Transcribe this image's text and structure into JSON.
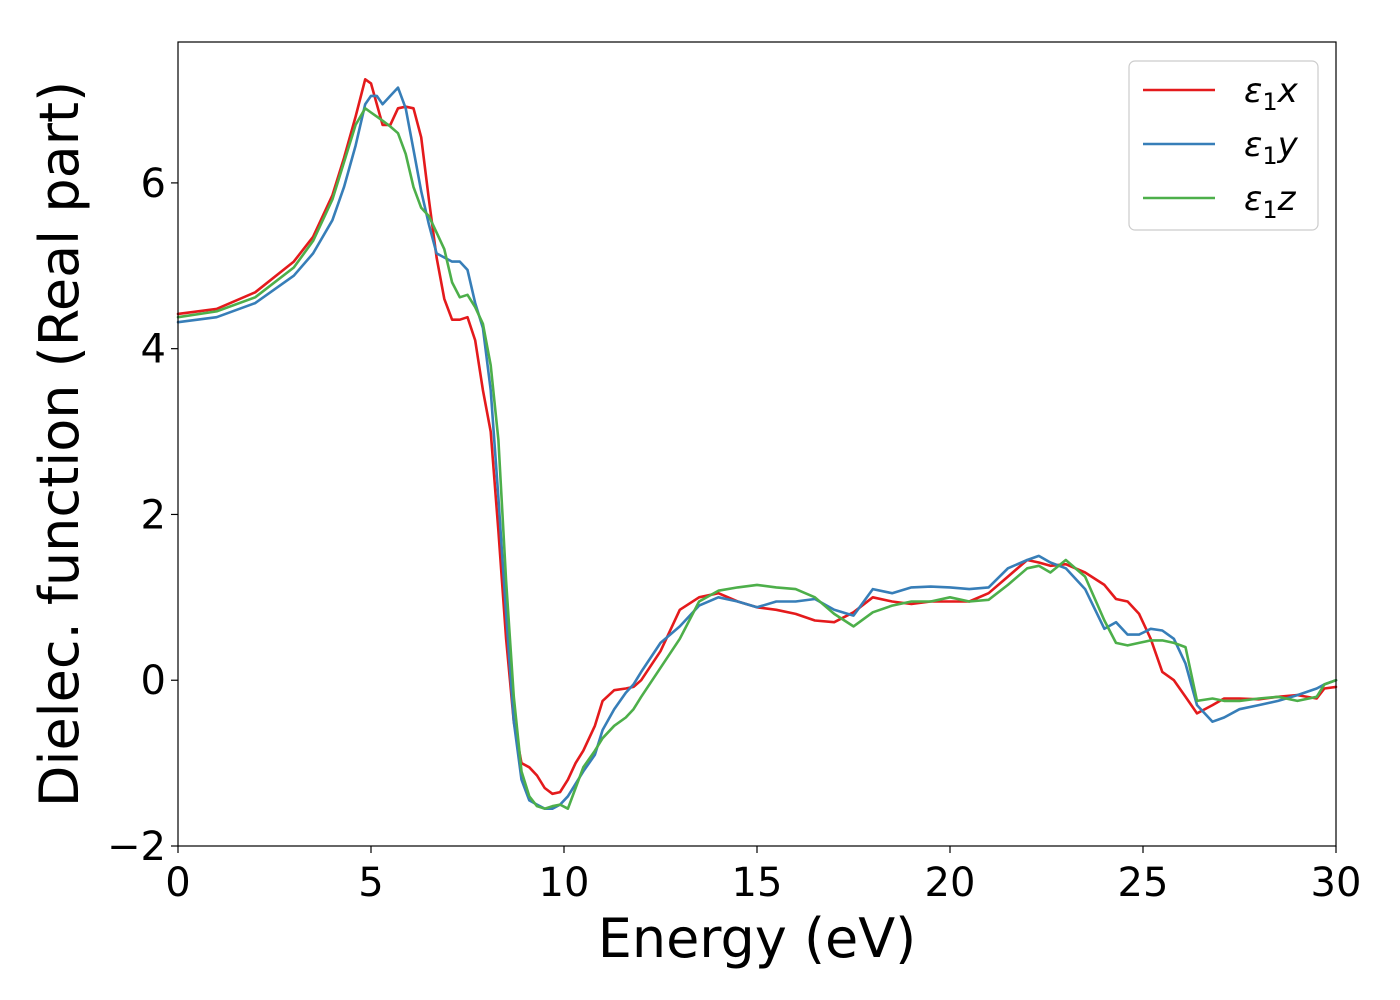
{
  "chart_data": {
    "type": "line",
    "title": "",
    "xlabel": "Energy (eV)",
    "ylabel": "Dielec. function (Real part)",
    "xlim": [
      0,
      30
    ],
    "ylim": [
      -2,
      7.7
    ],
    "xticks": [
      0,
      5,
      10,
      15,
      20,
      25,
      30
    ],
    "yticks": [
      -2,
      0,
      2,
      4,
      6
    ],
    "xtick_labels": [
      "0",
      "5",
      "10",
      "15",
      "20",
      "25",
      "30"
    ],
    "ytick_labels": [
      "−2",
      "0",
      "2",
      "4",
      "6"
    ],
    "grid": false,
    "legend_position": "top-right",
    "series": [
      {
        "name": "ε₁x",
        "legend_main": "ε",
        "legend_sub": "1",
        "legend_tail": "x",
        "color": "#e41a1c",
        "x": [
          0,
          1,
          2,
          3,
          3.5,
          4,
          4.3,
          4.6,
          4.85,
          5.0,
          5.15,
          5.3,
          5.5,
          5.7,
          5.9,
          6.1,
          6.3,
          6.5,
          6.7,
          6.9,
          7.1,
          7.3,
          7.5,
          7.7,
          7.9,
          8.1,
          8.3,
          8.5,
          8.7,
          8.9,
          9.1,
          9.3,
          9.5,
          9.7,
          9.9,
          10.1,
          10.3,
          10.5,
          10.8,
          11.0,
          11.3,
          11.6,
          11.8,
          12.0,
          12.5,
          13.0,
          13.5,
          14.0,
          14.5,
          15.0,
          15.5,
          16.0,
          16.5,
          17.0,
          17.5,
          18.0,
          18.5,
          19.0,
          19.5,
          20.0,
          20.5,
          21.0,
          21.5,
          22.0,
          22.3,
          22.6,
          23.0,
          23.5,
          24.0,
          24.3,
          24.6,
          24.9,
          25.2,
          25.5,
          25.8,
          26.1,
          26.4,
          26.8,
          27.1,
          27.5,
          28.0,
          28.5,
          29.0,
          29.5,
          29.7,
          30.0
        ],
        "y": [
          4.42,
          4.48,
          4.68,
          5.05,
          5.35,
          5.85,
          6.3,
          6.8,
          7.25,
          7.2,
          6.95,
          6.7,
          6.7,
          6.9,
          6.92,
          6.9,
          6.55,
          5.8,
          5.1,
          4.6,
          4.35,
          4.35,
          4.38,
          4.1,
          3.5,
          3.0,
          1.8,
          0.5,
          -0.5,
          -1.0,
          -1.05,
          -1.15,
          -1.3,
          -1.37,
          -1.35,
          -1.2,
          -1.0,
          -0.85,
          -0.55,
          -0.25,
          -0.12,
          -0.1,
          -0.08,
          0.0,
          0.35,
          0.85,
          1.0,
          1.05,
          0.95,
          0.88,
          0.85,
          0.8,
          0.72,
          0.7,
          0.82,
          1.0,
          0.95,
          0.92,
          0.95,
          0.95,
          0.95,
          1.05,
          1.25,
          1.45,
          1.42,
          1.38,
          1.4,
          1.3,
          1.15,
          0.98,
          0.95,
          0.8,
          0.5,
          0.1,
          0.0,
          -0.2,
          -0.4,
          -0.3,
          -0.22,
          -0.22,
          -0.23,
          -0.2,
          -0.18,
          -0.22,
          -0.1,
          -0.08
        ]
      },
      {
        "name": "ε₁y",
        "legend_main": "ε",
        "legend_sub": "1",
        "legend_tail": "y",
        "color": "#377eb8",
        "x": [
          0,
          1,
          2,
          3,
          3.5,
          4,
          4.3,
          4.6,
          4.85,
          5.0,
          5.15,
          5.3,
          5.5,
          5.7,
          5.9,
          6.1,
          6.3,
          6.5,
          6.7,
          6.9,
          7.1,
          7.3,
          7.5,
          7.7,
          7.9,
          8.1,
          8.3,
          8.5,
          8.7,
          8.9,
          9.1,
          9.3,
          9.5,
          9.7,
          9.9,
          10.1,
          10.3,
          10.5,
          10.8,
          11.0,
          11.3,
          11.6,
          11.8,
          12.0,
          12.5,
          13.0,
          13.5,
          14.0,
          14.5,
          15.0,
          15.5,
          16.0,
          16.5,
          17.0,
          17.5,
          18.0,
          18.5,
          19.0,
          19.5,
          20.0,
          20.5,
          21.0,
          21.5,
          22.0,
          22.3,
          22.6,
          23.0,
          23.5,
          24.0,
          24.3,
          24.6,
          24.9,
          25.2,
          25.5,
          25.8,
          26.1,
          26.4,
          26.8,
          27.1,
          27.5,
          28.0,
          28.5,
          29.0,
          29.5,
          29.7,
          30.0
        ],
        "y": [
          4.32,
          4.38,
          4.55,
          4.88,
          5.15,
          5.55,
          5.95,
          6.45,
          6.95,
          7.05,
          7.05,
          6.95,
          7.05,
          7.15,
          6.9,
          6.4,
          5.9,
          5.5,
          5.15,
          5.1,
          5.05,
          5.05,
          4.95,
          4.55,
          4.25,
          3.5,
          2.2,
          0.8,
          -0.5,
          -1.2,
          -1.45,
          -1.5,
          -1.55,
          -1.55,
          -1.5,
          -1.4,
          -1.25,
          -1.1,
          -0.9,
          -0.6,
          -0.35,
          -0.15,
          -0.05,
          0.1,
          0.45,
          0.65,
          0.9,
          1.0,
          0.95,
          0.88,
          0.95,
          0.95,
          0.98,
          0.85,
          0.78,
          1.1,
          1.05,
          1.12,
          1.13,
          1.12,
          1.1,
          1.12,
          1.35,
          1.45,
          1.5,
          1.42,
          1.35,
          1.1,
          0.62,
          0.7,
          0.55,
          0.55,
          0.62,
          0.6,
          0.5,
          0.2,
          -0.3,
          -0.5,
          -0.45,
          -0.35,
          -0.3,
          -0.25,
          -0.18,
          -0.1,
          -0.05,
          0.0
        ]
      },
      {
        "name": "ε₁z",
        "legend_main": "ε",
        "legend_sub": "1",
        "legend_tail": "z",
        "color": "#4daf4a",
        "x": [
          0,
          1,
          2,
          3,
          3.5,
          4,
          4.3,
          4.6,
          4.85,
          5.0,
          5.15,
          5.3,
          5.5,
          5.7,
          5.9,
          6.1,
          6.3,
          6.5,
          6.7,
          6.9,
          7.1,
          7.3,
          7.5,
          7.7,
          7.9,
          8.1,
          8.3,
          8.5,
          8.7,
          8.9,
          9.1,
          9.3,
          9.5,
          9.7,
          9.9,
          10.1,
          10.3,
          10.5,
          10.8,
          11.0,
          11.3,
          11.6,
          11.8,
          12.0,
          12.5,
          13.0,
          13.5,
          14.0,
          14.5,
          15.0,
          15.5,
          16.0,
          16.5,
          17.0,
          17.5,
          18.0,
          18.5,
          19.0,
          19.5,
          20.0,
          20.5,
          21.0,
          21.5,
          22.0,
          22.3,
          22.6,
          23.0,
          23.5,
          24.0,
          24.3,
          24.6,
          24.9,
          25.2,
          25.5,
          25.8,
          26.1,
          26.4,
          26.8,
          27.1,
          27.5,
          28.0,
          28.5,
          29.0,
          29.5,
          29.7,
          30.0
        ],
        "y": [
          4.38,
          4.45,
          4.62,
          4.98,
          5.3,
          5.8,
          6.25,
          6.7,
          6.9,
          6.85,
          6.8,
          6.75,
          6.68,
          6.6,
          6.35,
          5.95,
          5.7,
          5.6,
          5.4,
          5.2,
          4.8,
          4.62,
          4.65,
          4.5,
          4.3,
          3.8,
          2.9,
          1.2,
          -0.2,
          -1.1,
          -1.4,
          -1.52,
          -1.55,
          -1.52,
          -1.5,
          -1.55,
          -1.3,
          -1.05,
          -0.85,
          -0.7,
          -0.55,
          -0.45,
          -0.35,
          -0.2,
          0.15,
          0.5,
          0.95,
          1.08,
          1.12,
          1.15,
          1.12,
          1.1,
          1.0,
          0.8,
          0.65,
          0.82,
          0.9,
          0.95,
          0.95,
          1.0,
          0.95,
          0.97,
          1.15,
          1.35,
          1.38,
          1.3,
          1.45,
          1.25,
          0.72,
          0.45,
          0.42,
          0.45,
          0.48,
          0.48,
          0.45,
          0.4,
          -0.25,
          -0.22,
          -0.25,
          -0.25,
          -0.22,
          -0.2,
          -0.25,
          -0.2,
          -0.05,
          0.0
        ]
      }
    ]
  }
}
